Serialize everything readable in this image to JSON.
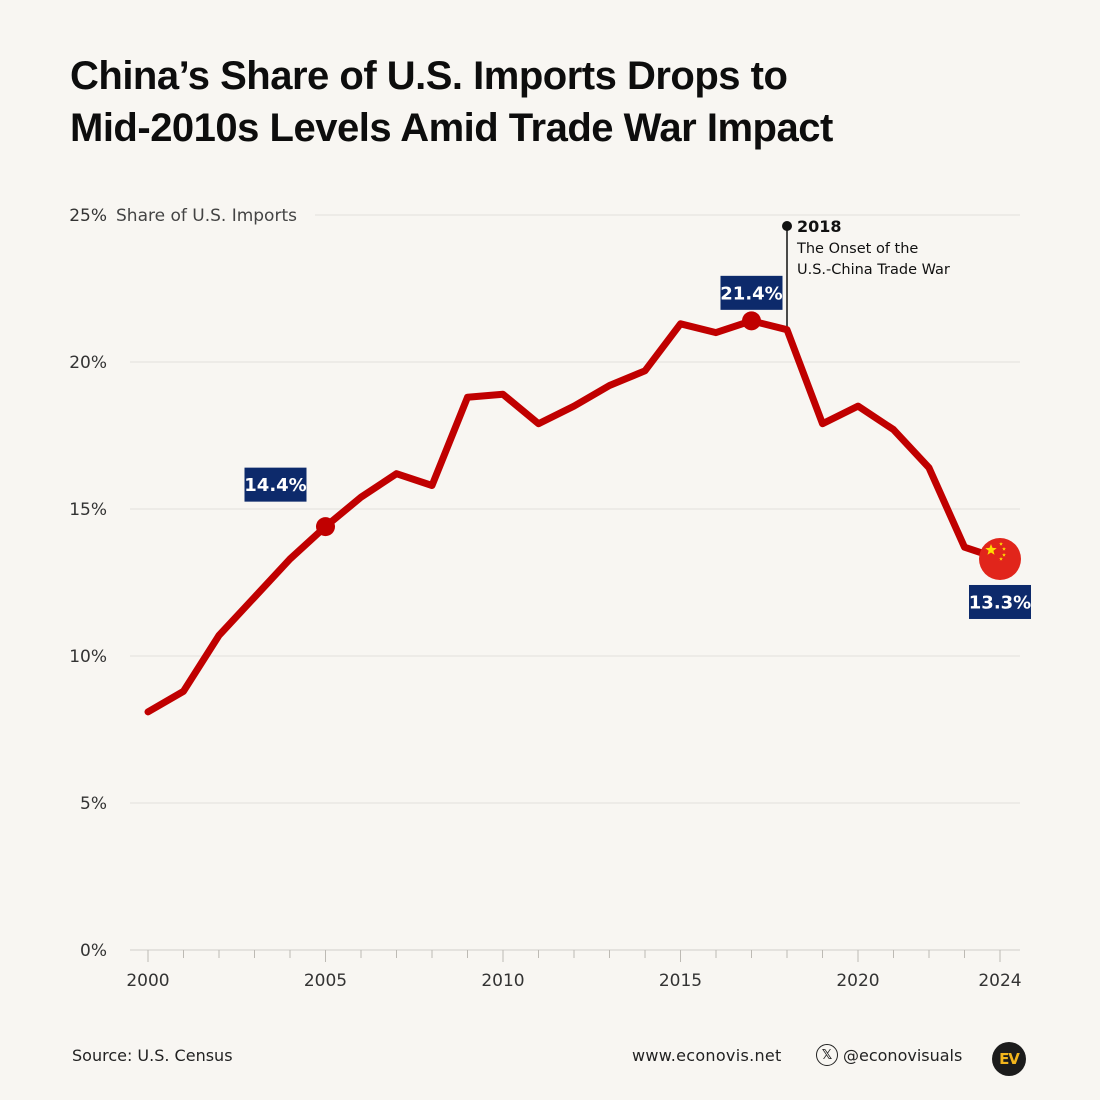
{
  "header": {
    "title_line1": "China’s Share of U.S. Imports Drops to",
    "title_line2": "Mid-2010s Levels Amid Trade War Impact"
  },
  "chart_data": {
    "type": "line",
    "title": "China’s Share of U.S. Imports Drops to Mid-2010s Levels Amid Trade War Impact",
    "ylabel": "Share of U.S. Imports",
    "xlabel": "",
    "ylim": [
      0,
      25
    ],
    "xlim": [
      2000,
      2024
    ],
    "y_ticks": [
      0,
      5,
      10,
      15,
      20,
      25
    ],
    "y_tick_labels": [
      "0%",
      "5%",
      "10%",
      "15%",
      "20%",
      "25%"
    ],
    "x_ticks": [
      2000,
      2005,
      2010,
      2015,
      2020,
      2024
    ],
    "x_tick_labels": [
      "2000",
      "2005",
      "2010",
      "2015",
      "2020",
      "2024"
    ],
    "grid": true,
    "series": [
      {
        "color": "#c00000",
        "x": [
          2000,
          2001,
          2002,
          2003,
          2004,
          2005,
          2006,
          2007,
          2008,
          2009,
          2010,
          2011,
          2012,
          2013,
          2014,
          2015,
          2016,
          2017,
          2018,
          2019,
          2020,
          2021,
          2022,
          2023,
          2024
        ],
        "values": [
          8.1,
          8.8,
          10.7,
          12.0,
          13.3,
          14.4,
          15.4,
          16.2,
          15.8,
          18.8,
          18.9,
          17.9,
          18.5,
          19.2,
          19.7,
          21.3,
          21.0,
          21.4,
          21.1,
          17.9,
          18.5,
          17.7,
          16.4,
          13.7,
          13.3
        ]
      }
    ],
    "highlights": [
      {
        "x": 2005,
        "value": 14.4,
        "label": "14.4%"
      },
      {
        "x": 2017,
        "value": 21.4,
        "label": "21.4%"
      },
      {
        "x": 2024,
        "value": 13.3,
        "label": "13.3%"
      }
    ],
    "annotation": {
      "x": 2018,
      "year": "2018",
      "line1": "The Onset of the",
      "line2": "U.S.-China Trade War"
    },
    "colors": {
      "line": "#c00000",
      "badge": "#0d2a6b",
      "flag_red": "#e1251b",
      "flag_star": "#ffde00",
      "grid": "#e2e0dc"
    },
    "end_marker_icon": "china-flag-icon"
  },
  "footer": {
    "source": "Source: U.S. Census",
    "website": "www.econovis.net",
    "handle": "@econovisuals",
    "x_icon": "𝕏",
    "logo": "EV"
  }
}
